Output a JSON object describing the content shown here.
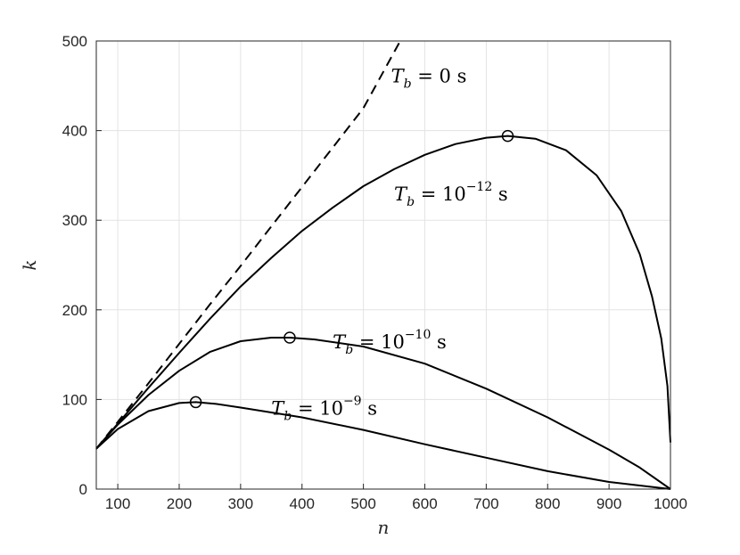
{
  "chart_data": {
    "type": "line",
    "xlabel": "n",
    "ylabel": "k",
    "xlim": [
      65,
      1000
    ],
    "ylim": [
      0,
      500
    ],
    "xticks": [
      100,
      200,
      300,
      400,
      500,
      600,
      700,
      800,
      900,
      1000
    ],
    "yticks": [
      0,
      100,
      200,
      300,
      400,
      500
    ],
    "grid": true,
    "series": [
      {
        "style": "dashed",
        "x": [
          65,
          100,
          150,
          200,
          250,
          300,
          350,
          400,
          450,
          500,
          560
        ],
        "y": [
          45,
          75,
          118,
          162,
          206,
          249,
          293,
          337,
          381,
          425,
          500
        ]
      },
      {
        "style": "solid",
        "x": [
          65,
          100,
          150,
          200,
          250,
          300,
          350,
          400,
          450,
          500,
          550,
          600,
          650,
          700,
          735,
          780,
          830,
          880,
          920,
          950,
          970,
          985,
          995,
          1000
        ],
        "y": [
          45,
          73,
          113,
          152,
          190,
          226,
          258,
          288,
          314,
          338,
          357,
          373,
          385,
          392,
          394,
          391,
          378,
          350,
          310,
          262,
          215,
          168,
          115,
          52
        ]
      },
      {
        "style": "solid",
        "x": [
          65,
          100,
          150,
          200,
          250,
          300,
          350,
          380,
          420,
          500,
          600,
          700,
          800,
          900,
          950,
          1000
        ],
        "y": [
          45,
          72,
          105,
          132,
          153,
          165,
          169,
          169,
          167,
          159,
          140,
          112,
          80,
          44,
          24,
          0
        ]
      },
      {
        "style": "solid",
        "x": [
          65,
          100,
          150,
          200,
          227,
          260,
          300,
          400,
          500,
          600,
          700,
          800,
          900,
          1000
        ],
        "y": [
          45,
          67,
          87,
          96,
          97,
          95,
          91,
          80,
          66,
          50,
          35,
          20,
          8,
          0
        ]
      }
    ],
    "markers": [
      {
        "x": 735,
        "y": 394
      },
      {
        "x": 380,
        "y": 169
      },
      {
        "x": 227,
        "y": 97
      }
    ],
    "annotations": [
      {
        "label": "T_b = 0 s",
        "base": "T",
        "sub": "b",
        "eq": " = 0 s",
        "exp": "",
        "x": 545,
        "y": 454
      },
      {
        "label": "T_b = 10^-12 s",
        "base": "T",
        "sub": "b",
        "eq": " = 10",
        "exp": "−12",
        "unit": " s",
        "x": 550,
        "y": 322
      },
      {
        "label": "T_b = 10^-10 s",
        "base": "T",
        "sub": "b",
        "eq": " = 10",
        "exp": "−10",
        "unit": " s",
        "x": 450,
        "y": 157
      },
      {
        "label": "T_b = 10^-9 s",
        "base": "T",
        "sub": "b",
        "eq": " = 10",
        "exp": "−9",
        "unit": " s",
        "x": 350,
        "y": 83
      }
    ]
  }
}
